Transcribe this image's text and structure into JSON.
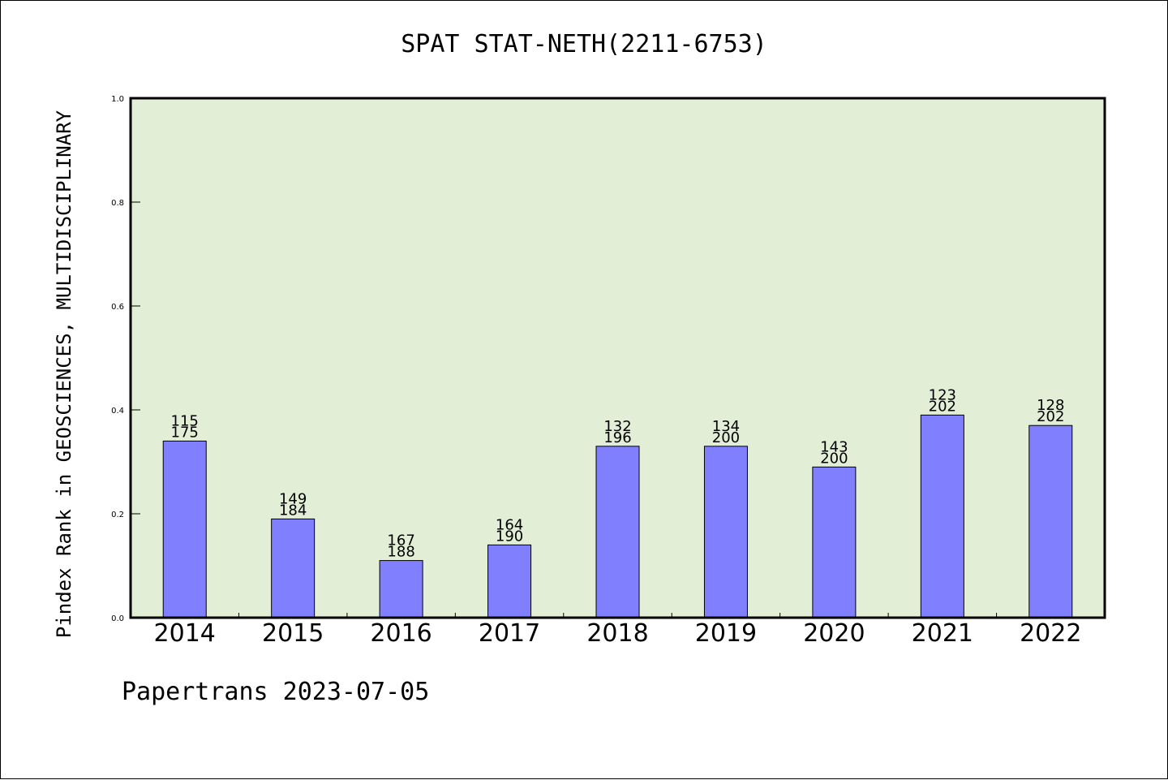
{
  "title": "SPAT STAT-NETH(2211-6753)",
  "footer": "Papertrans 2023-07-05",
  "chart_data": {
    "type": "bar",
    "title": "SPAT STAT-NETH(2211-6753)",
    "xlabel": "",
    "ylabel": "Pindex Rank in GEOSCIENCES, MULTIDISCIPLINARY",
    "ylim": [
      0,
      1.0
    ],
    "yticks": [
      "0.0",
      "0.2",
      "0.4",
      "0.6",
      "0.8",
      "1.0"
    ],
    "categories": [
      "2014",
      "2015",
      "2016",
      "2017",
      "2018",
      "2019",
      "2020",
      "2021",
      "2022"
    ],
    "values": [
      0.34,
      0.19,
      0.11,
      0.14,
      0.33,
      0.33,
      0.29,
      0.39,
      0.37
    ],
    "ranks": [
      "115",
      "149",
      "167",
      "164",
      "132",
      "134",
      "143",
      "123",
      "128"
    ],
    "totals": [
      "175",
      "184",
      "188",
      "190",
      "196",
      "200",
      "200",
      "202",
      "202"
    ],
    "grid": false,
    "colors": {
      "plot_bg": "#e2efd6",
      "bar": "#8080ff",
      "bar_edge": "#000000",
      "axis": "#000000"
    }
  }
}
